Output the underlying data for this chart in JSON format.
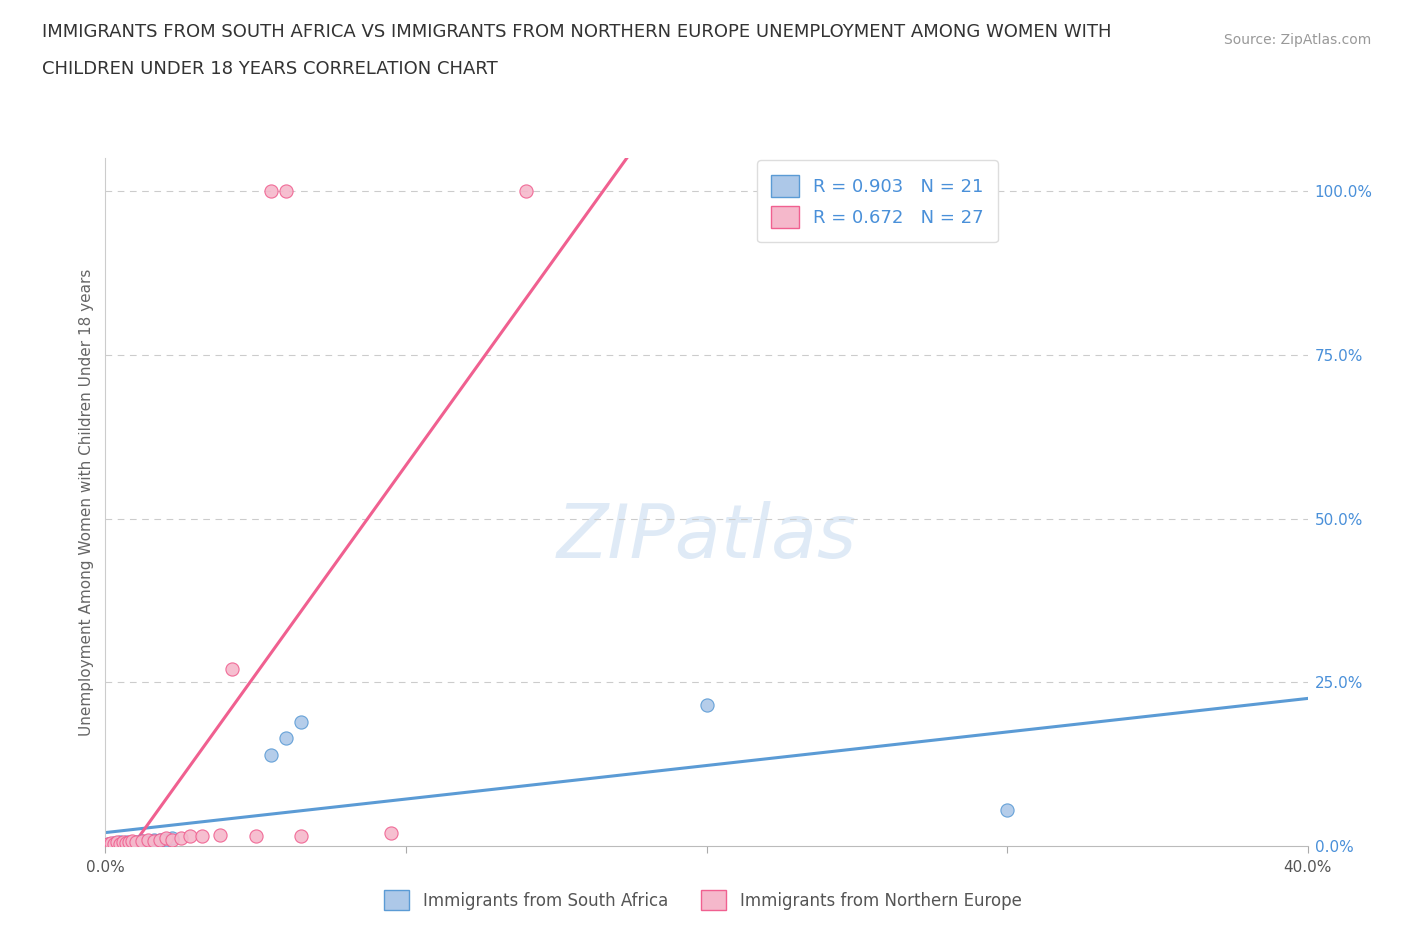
{
  "title_line1": "IMMIGRANTS FROM SOUTH AFRICA VS IMMIGRANTS FROM NORTHERN EUROPE UNEMPLOYMENT AMONG WOMEN WITH",
  "title_line2": "CHILDREN UNDER 18 YEARS CORRELATION CHART",
  "source": "Source: ZipAtlas.com",
  "ylabel": "Unemployment Among Women with Children Under 18 years",
  "series1_name": "Immigrants from South Africa",
  "series2_name": "Immigrants from Northern Europe",
  "series1_color": "#adc8e8",
  "series2_color": "#f5b8cb",
  "series1_edge_color": "#5b9bd5",
  "series2_edge_color": "#f06090",
  "series1_line_color": "#5b9bd5",
  "series2_line_color": "#f06090",
  "series1_R": 0.903,
  "series1_N": 21,
  "series2_R": 0.672,
  "series2_N": 27,
  "xlim": [
    0.0,
    0.4
  ],
  "ylim": [
    0.0,
    1.05
  ],
  "xticks": [
    0.0,
    0.1,
    0.2,
    0.3,
    0.4
  ],
  "xticklabels": [
    "0.0%",
    "",
    "",
    "",
    "40.0%"
  ],
  "yticks_right": [
    0.0,
    0.25,
    0.5,
    0.75,
    1.0
  ],
  "ytick_labels_right": [
    "0.0%",
    "25.0%",
    "50.0%",
    "75.0%",
    "100.0%"
  ],
  "series1_x": [
    0.001,
    0.002,
    0.003,
    0.004,
    0.005,
    0.006,
    0.007,
    0.008,
    0.009,
    0.01,
    0.012,
    0.014,
    0.016,
    0.018,
    0.02,
    0.022,
    0.055,
    0.06,
    0.065,
    0.2,
    0.3
  ],
  "series1_y": [
    0.003,
    0.004,
    0.005,
    0.003,
    0.006,
    0.004,
    0.007,
    0.005,
    0.004,
    0.006,
    0.008,
    0.007,
    0.01,
    0.009,
    0.01,
    0.012,
    0.14,
    0.165,
    0.19,
    0.215,
    0.055
  ],
  "series2_x": [
    0.001,
    0.002,
    0.003,
    0.004,
    0.005,
    0.006,
    0.007,
    0.008,
    0.009,
    0.01,
    0.012,
    0.014,
    0.016,
    0.018,
    0.02,
    0.022,
    0.025,
    0.028,
    0.032,
    0.038,
    0.042,
    0.05,
    0.055,
    0.06,
    0.065,
    0.095,
    0.14
  ],
  "series2_y": [
    0.003,
    0.005,
    0.004,
    0.006,
    0.004,
    0.007,
    0.005,
    0.006,
    0.008,
    0.007,
    0.008,
    0.01,
    0.008,
    0.01,
    0.012,
    0.01,
    0.012,
    0.015,
    0.015,
    0.018,
    0.27,
    0.015,
    1.0,
    1.0,
    0.015,
    0.02,
    1.0
  ],
  "watermark_text": "ZIPatlas",
  "background_color": "#ffffff",
  "title_fontsize": 13,
  "axis_label_color": "#666666",
  "right_tick_color": "#4a90d9",
  "legend_text_color": "#4a90d9"
}
